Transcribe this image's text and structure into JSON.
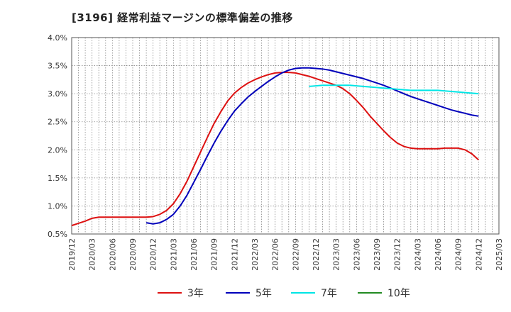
{
  "chart_data": {
    "type": "line",
    "title": "[3196]  経常利益マージンの標準偏差の推移",
    "xlabel": "",
    "ylabel": "",
    "ylim": [
      0.5,
      4.0
    ],
    "grid": true,
    "legend_position": "bottom",
    "y_ticks": [
      "0.5%",
      "1.0%",
      "1.5%",
      "2.0%",
      "2.5%",
      "3.0%",
      "3.5%",
      "4.0%"
    ],
    "x_ticks": [
      "2019/12",
      "2020/03",
      "2020/06",
      "2020/09",
      "2020/12",
      "2021/03",
      "2021/06",
      "2021/09",
      "2021/12",
      "2022/03",
      "2022/06",
      "2022/09",
      "2022/12",
      "2023/03",
      "2023/06",
      "2023/09",
      "2023/12",
      "2024/03",
      "2024/06",
      "2024/09",
      "2024/12",
      "2025/03"
    ],
    "series": [
      {
        "name": "3年",
        "color": "#dd1111",
        "points": [
          [
            "2019/12",
            0.65
          ],
          [
            "2020/01",
            0.69
          ],
          [
            "2020/02",
            0.73
          ],
          [
            "2020/03",
            0.78
          ],
          [
            "2020/04",
            0.8
          ],
          [
            "2020/05",
            0.8
          ],
          [
            "2020/06",
            0.8
          ],
          [
            "2020/07",
            0.8
          ],
          [
            "2020/08",
            0.8
          ],
          [
            "2020/09",
            0.8
          ],
          [
            "2020/10",
            0.8
          ],
          [
            "2020/11",
            0.8
          ],
          [
            "2020/12",
            0.81
          ],
          [
            "2021/01",
            0.85
          ],
          [
            "2021/02",
            0.92
          ],
          [
            "2021/03",
            1.04
          ],
          [
            "2021/04",
            1.22
          ],
          [
            "2021/05",
            1.44
          ],
          [
            "2021/06",
            1.7
          ],
          [
            "2021/07",
            1.96
          ],
          [
            "2021/08",
            2.22
          ],
          [
            "2021/09",
            2.47
          ],
          [
            "2021/10",
            2.68
          ],
          [
            "2021/11",
            2.87
          ],
          [
            "2021/12",
            3.01
          ],
          [
            "2022/01",
            3.11
          ],
          [
            "2022/02",
            3.19
          ],
          [
            "2022/03",
            3.25
          ],
          [
            "2022/04",
            3.3
          ],
          [
            "2022/05",
            3.34
          ],
          [
            "2022/06",
            3.37
          ],
          [
            "2022/07",
            3.38
          ],
          [
            "2022/08",
            3.38
          ],
          [
            "2022/09",
            3.37
          ],
          [
            "2022/10",
            3.34
          ],
          [
            "2022/11",
            3.31
          ],
          [
            "2022/12",
            3.27
          ],
          [
            "2023/01",
            3.23
          ],
          [
            "2023/02",
            3.19
          ],
          [
            "2023/03",
            3.15
          ],
          [
            "2023/04",
            3.09
          ],
          [
            "2023/05",
            3.0
          ],
          [
            "2023/06",
            2.88
          ],
          [
            "2023/07",
            2.75
          ],
          [
            "2023/08",
            2.6
          ],
          [
            "2023/09",
            2.47
          ],
          [
            "2023/10",
            2.34
          ],
          [
            "2023/11",
            2.22
          ],
          [
            "2023/12",
            2.12
          ],
          [
            "2024/01",
            2.06
          ],
          [
            "2024/02",
            2.03
          ],
          [
            "2024/03",
            2.02
          ],
          [
            "2024/04",
            2.02
          ],
          [
            "2024/05",
            2.02
          ],
          [
            "2024/06",
            2.02
          ],
          [
            "2024/07",
            2.03
          ],
          [
            "2024/08",
            2.03
          ],
          [
            "2024/09",
            2.03
          ],
          [
            "2024/10",
            2.0
          ],
          [
            "2024/11",
            1.93
          ],
          [
            "2024/12",
            1.82
          ]
        ]
      },
      {
        "name": "5年",
        "color": "#0000bb",
        "points": [
          [
            "2020/11",
            0.7
          ],
          [
            "2020/12",
            0.68
          ],
          [
            "2021/01",
            0.7
          ],
          [
            "2021/02",
            0.76
          ],
          [
            "2021/03",
            0.85
          ],
          [
            "2021/04",
            1.0
          ],
          [
            "2021/05",
            1.19
          ],
          [
            "2021/06",
            1.42
          ],
          [
            "2021/07",
            1.65
          ],
          [
            "2021/08",
            1.89
          ],
          [
            "2021/09",
            2.12
          ],
          [
            "2021/10",
            2.33
          ],
          [
            "2021/11",
            2.52
          ],
          [
            "2021/12",
            2.69
          ],
          [
            "2022/01",
            2.82
          ],
          [
            "2022/02",
            2.94
          ],
          [
            "2022/03",
            3.04
          ],
          [
            "2022/04",
            3.13
          ],
          [
            "2022/05",
            3.22
          ],
          [
            "2022/06",
            3.3
          ],
          [
            "2022/07",
            3.37
          ],
          [
            "2022/08",
            3.42
          ],
          [
            "2022/09",
            3.45
          ],
          [
            "2022/10",
            3.46
          ],
          [
            "2022/11",
            3.46
          ],
          [
            "2022/12",
            3.45
          ],
          [
            "2023/01",
            3.44
          ],
          [
            "2023/02",
            3.42
          ],
          [
            "2023/03",
            3.39
          ],
          [
            "2023/04",
            3.36
          ],
          [
            "2023/05",
            3.33
          ],
          [
            "2023/06",
            3.3
          ],
          [
            "2023/07",
            3.27
          ],
          [
            "2023/08",
            3.23
          ],
          [
            "2023/09",
            3.19
          ],
          [
            "2023/10",
            3.15
          ],
          [
            "2023/11",
            3.1
          ],
          [
            "2023/12",
            3.05
          ],
          [
            "2024/01",
            3.0
          ],
          [
            "2024/02",
            2.95
          ],
          [
            "2024/03",
            2.91
          ],
          [
            "2024/04",
            2.87
          ],
          [
            "2024/05",
            2.83
          ],
          [
            "2024/06",
            2.79
          ],
          [
            "2024/07",
            2.75
          ],
          [
            "2024/08",
            2.71
          ],
          [
            "2024/09",
            2.68
          ],
          [
            "2024/10",
            2.65
          ],
          [
            "2024/11",
            2.62
          ],
          [
            "2024/12",
            2.6
          ]
        ]
      },
      {
        "name": "7年",
        "color": "#00e5e5",
        "points": [
          [
            "2022/11",
            3.13
          ],
          [
            "2022/12",
            3.14
          ],
          [
            "2023/01",
            3.15
          ],
          [
            "2023/02",
            3.15
          ],
          [
            "2023/03",
            3.15
          ],
          [
            "2023/04",
            3.15
          ],
          [
            "2023/05",
            3.15
          ],
          [
            "2023/06",
            3.14
          ],
          [
            "2023/07",
            3.13
          ],
          [
            "2023/08",
            3.12
          ],
          [
            "2023/09",
            3.11
          ],
          [
            "2023/10",
            3.1
          ],
          [
            "2023/11",
            3.09
          ],
          [
            "2023/12",
            3.08
          ],
          [
            "2024/01",
            3.07
          ],
          [
            "2024/02",
            3.06
          ],
          [
            "2024/03",
            3.06
          ],
          [
            "2024/04",
            3.06
          ],
          [
            "2024/05",
            3.06
          ],
          [
            "2024/06",
            3.06
          ],
          [
            "2024/07",
            3.05
          ],
          [
            "2024/08",
            3.04
          ],
          [
            "2024/09",
            3.03
          ],
          [
            "2024/10",
            3.02
          ],
          [
            "2024/11",
            3.01
          ],
          [
            "2024/12",
            3.0
          ]
        ]
      },
      {
        "name": "10年",
        "color": "#228b22",
        "points": []
      }
    ]
  }
}
